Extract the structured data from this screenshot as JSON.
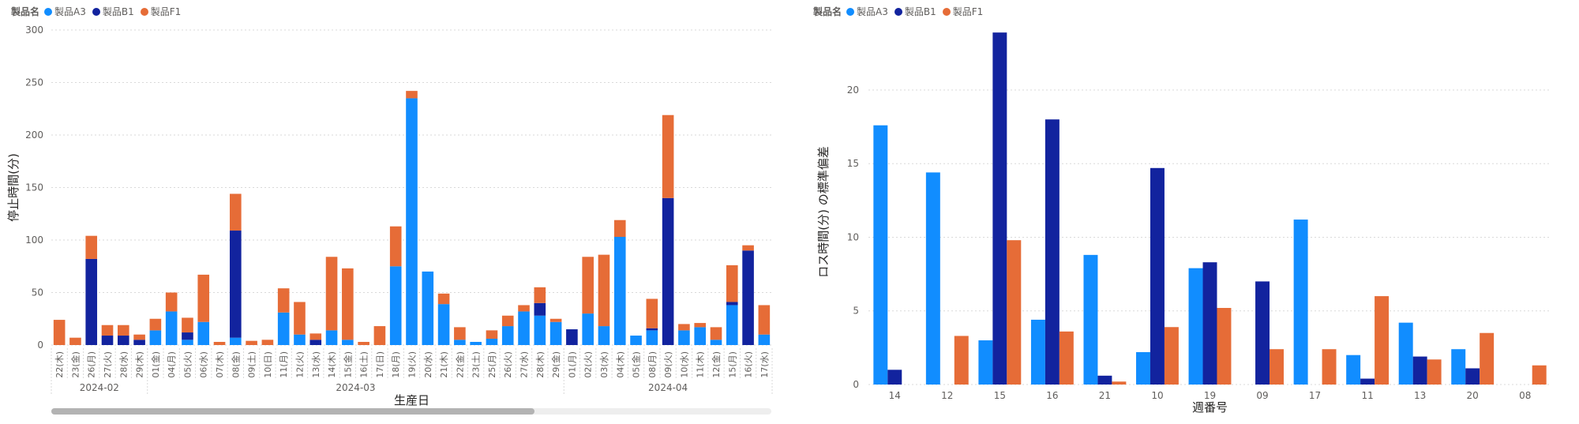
{
  "colors": {
    "A3": "#118DFF",
    "B1": "#12239E",
    "F1": "#E66C37",
    "grid": "#d9d9d9",
    "axis_text": "#605e5c"
  },
  "legend": {
    "title": "製品名",
    "items": [
      {
        "label": "製品A3",
        "color": "#118DFF"
      },
      {
        "label": "製品B1",
        "color": "#12239E"
      },
      {
        "label": "製品F1",
        "color": "#E66C37"
      }
    ]
  },
  "chart_data": [
    {
      "type": "bar",
      "stacked": true,
      "xlabel": "生産日",
      "ylabel": "停止時間(分)",
      "ylim": [
        0,
        300
      ],
      "yticks": [
        0,
        50,
        100,
        150,
        200,
        250,
        300
      ],
      "grid": true,
      "legend_position": "top-left",
      "categories": [
        "22(木)",
        "23(金)",
        "26(月)",
        "27(火)",
        "28(水)",
        "29(木)",
        "01(金)",
        "04(月)",
        "05(火)",
        "06(水)",
        "07(木)",
        "08(金)",
        "09(土)",
        "10(日)",
        "11(月)",
        "12(火)",
        "13(水)",
        "14(木)",
        "15(金)",
        "16(土)",
        "17(日)",
        "18(月)",
        "19(火)",
        "20(水)",
        "21(木)",
        "22(金)",
        "23(土)",
        "25(月)",
        "26(火)",
        "27(水)",
        "28(木)",
        "29(金)",
        "01(月)",
        "02(火)",
        "03(水)",
        "04(木)",
        "05(金)",
        "08(月)",
        "09(火)",
        "10(水)",
        "11(木)",
        "12(金)",
        "15(月)",
        "16(火)",
        "17(水)"
      ],
      "groups": [
        {
          "label": "2024-02",
          "start": 0,
          "end": 5
        },
        {
          "label": "2024-03",
          "start": 6,
          "end": 31
        },
        {
          "label": "2024-04",
          "start": 32,
          "end": 44
        }
      ],
      "series": [
        {
          "name": "製品A3",
          "values": [
            0,
            0,
            0,
            0,
            0,
            0,
            14,
            32,
            5,
            22,
            0,
            7,
            0,
            0,
            31,
            10,
            0,
            14,
            5,
            0,
            0,
            75,
            235,
            70,
            39,
            5,
            3,
            6,
            18,
            32,
            28,
            22,
            0,
            30,
            18,
            103,
            9,
            14,
            0,
            14,
            17,
            5,
            38,
            0,
            10
          ]
        },
        {
          "name": "製品B1",
          "values": [
            0,
            0,
            82,
            9,
            9,
            5,
            0,
            0,
            7,
            0,
            0,
            102,
            0,
            0,
            0,
            0,
            5,
            0,
            0,
            0,
            0,
            0,
            0,
            0,
            0,
            0,
            0,
            0,
            0,
            0,
            12,
            0,
            15,
            0,
            0,
            0,
            0,
            2,
            140,
            0,
            0,
            0,
            3,
            90,
            0
          ]
        },
        {
          "name": "製品F1",
          "values": [
            24,
            7,
            22,
            10,
            10,
            5,
            11,
            18,
            14,
            45,
            3,
            35,
            4,
            5,
            23,
            31,
            6,
            70,
            68,
            3,
            18,
            38,
            7,
            0,
            10,
            12,
            0,
            8,
            10,
            6,
            15,
            3,
            0,
            54,
            68,
            16,
            0,
            28,
            79,
            6,
            4,
            12,
            35,
            5,
            28
          ]
        }
      ]
    },
    {
      "type": "bar",
      "stacked": false,
      "xlabel": "週番号",
      "ylabel": "ロス時間(分) の標準偏差",
      "ylim": [
        0,
        24.5
      ],
      "yticks": [
        0,
        5,
        10,
        15,
        20
      ],
      "grid": true,
      "legend_position": "top-left",
      "categories": [
        "14",
        "12",
        "15",
        "16",
        "21",
        "10",
        "19",
        "09",
        "17",
        "11",
        "13",
        "20",
        "08"
      ],
      "series": [
        {
          "name": "製品A3",
          "values": [
            17.6,
            14.4,
            3.0,
            4.4,
            8.8,
            2.2,
            7.9,
            null,
            11.2,
            2.0,
            4.2,
            2.4,
            null
          ]
        },
        {
          "name": "製品B1",
          "values": [
            1.0,
            null,
            23.9,
            18.0,
            0.6,
            14.7,
            8.3,
            7.0,
            null,
            0.4,
            1.9,
            1.1,
            null
          ]
        },
        {
          "name": "製品F1",
          "values": [
            null,
            3.3,
            9.8,
            3.6,
            0.2,
            3.9,
            5.2,
            2.4,
            2.4,
            6.0,
            1.7,
            3.5,
            1.3
          ]
        }
      ]
    }
  ]
}
